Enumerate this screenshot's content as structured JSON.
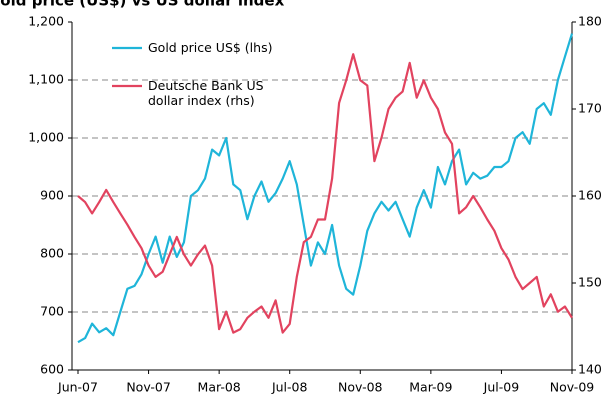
{
  "chart_data": {
    "type": "line",
    "title": "Gold price (US$) vs US dollar index",
    "categories": [
      "Jun-07",
      null,
      null,
      null,
      null,
      null,
      null,
      null,
      null,
      null,
      "Nov-07",
      null,
      null,
      null,
      null,
      null,
      null,
      null,
      null,
      null,
      "Mar-08",
      null,
      null,
      null,
      null,
      null,
      null,
      null,
      null,
      null,
      "Jul-08",
      null,
      null,
      null,
      null,
      null,
      null,
      null,
      null,
      null,
      "Nov-08",
      null,
      null,
      null,
      null,
      null,
      null,
      null,
      null,
      null,
      "Mar-09",
      null,
      null,
      null,
      null,
      null,
      null,
      null,
      null,
      null,
      "Jul-09",
      null,
      null,
      null,
      null,
      null,
      null,
      null,
      null,
      null,
      "Nov-09"
    ],
    "series": [
      {
        "name": "Gold price US$ (lhs)",
        "color": "#1fb5d9",
        "axis": "y",
        "values": [
          648,
          655,
          680,
          665,
          672,
          660,
          700,
          740,
          745,
          765,
          800,
          830,
          785,
          830,
          795,
          820,
          900,
          910,
          930,
          980,
          970,
          1000,
          920,
          910,
          860,
          900,
          925,
          890,
          905,
          930,
          960,
          920,
          850,
          780,
          820,
          800,
          850,
          780,
          740,
          730,
          780,
          840,
          870,
          890,
          875,
          890,
          860,
          830,
          880,
          910,
          880,
          950,
          920,
          960,
          980,
          920,
          940,
          930,
          935,
          950,
          950,
          960,
          1000,
          1010,
          990,
          1050,
          1060,
          1040,
          1100,
          1140,
          1180
        ]
      },
      {
        "name": "Deutsche Bank US dollar index (rhs)",
        "color": "#e2435f",
        "axis": "y2",
        "values": [
          160.0,
          159.3,
          158.0,
          159.3,
          160.7,
          159.3,
          158.0,
          156.7,
          155.3,
          154.0,
          152.0,
          150.7,
          151.3,
          153.3,
          155.3,
          153.3,
          152.0,
          153.3,
          154.3,
          152.0,
          144.7,
          146.7,
          144.3,
          144.7,
          146.0,
          146.7,
          147.3,
          146.0,
          148.0,
          144.3,
          145.3,
          150.7,
          154.7,
          155.3,
          157.3,
          157.3,
          162.0,
          170.7,
          173.3,
          176.3,
          173.3,
          172.7,
          164.0,
          166.7,
          170.0,
          171.3,
          172.0,
          175.3,
          171.3,
          173.3,
          171.3,
          170.0,
          167.3,
          166.0,
          158.0,
          158.7,
          160.0,
          158.7,
          157.3,
          156.0,
          154.0,
          152.7,
          150.7,
          149.3,
          150.0,
          150.7,
          147.3,
          148.7,
          146.7,
          147.3,
          146.0
        ]
      }
    ],
    "ylim": [
      600,
      1200
    ],
    "yticks": [
      600,
      700,
      800,
      900,
      {
        "value": 1000,
        "label": "1,000"
      },
      {
        "value": 1100,
        "label": "1,100"
      },
      {
        "value": 1200,
        "label": "1,200"
      }
    ],
    "y2lim": [
      140,
      180
    ],
    "y2ticks": [
      140,
      150,
      160,
      170,
      180
    ],
    "grid": true,
    "legend": "upper left"
  }
}
